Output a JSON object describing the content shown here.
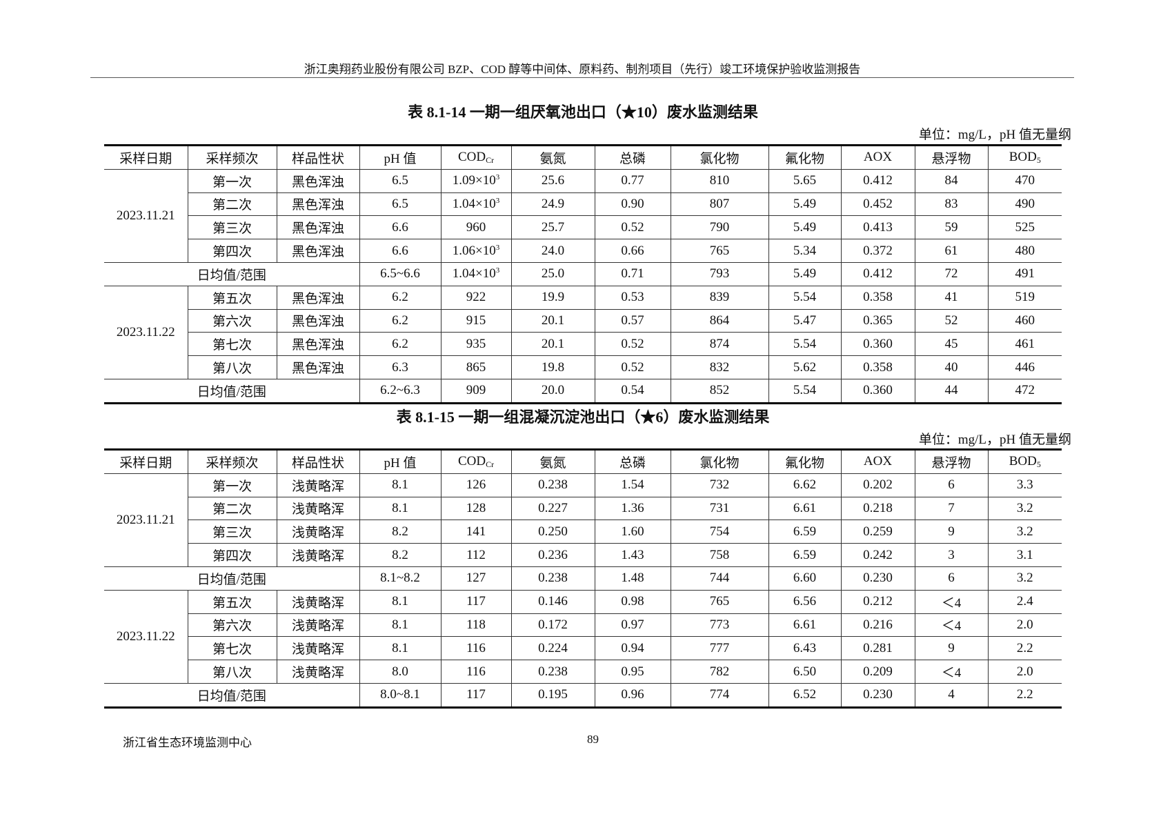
{
  "header": {
    "title": "浙江奥翔药业股份有限公司 BZP、COD 醇等中间体、原料药、制剂项目（先行）竣工环境保护验收监测报告"
  },
  "columns": [
    {
      "text": "采样日期"
    },
    {
      "text": "采样频次"
    },
    {
      "text": "样品性状"
    },
    {
      "text": "pH 值"
    },
    {
      "text": "COD",
      "sub": "Cr"
    },
    {
      "text": "氨氮"
    },
    {
      "text": "总磷"
    },
    {
      "text": "氯化物"
    },
    {
      "text": "氟化物"
    },
    {
      "text": "AOX"
    },
    {
      "text": "悬浮物"
    },
    {
      "text": "BOD",
      "sub": "5"
    }
  ],
  "tables": [
    {
      "title": "表 8.1-14  一期一组厌氧池出口（★10）废水监测结果",
      "unit": "单位：mg/L，pH 值无量纲",
      "groups": [
        {
          "date": "2023.11.21",
          "rows": [
            [
              "第一次",
              "黑色浑浊",
              "6.5",
              "1.09×10^3",
              "25.6",
              "0.77",
              "810",
              "5.65",
              "0.412",
              "84",
              "470"
            ],
            [
              "第二次",
              "黑色浑浊",
              "6.5",
              "1.04×10^3",
              "24.9",
              "0.90",
              "807",
              "5.49",
              "0.452",
              "83",
              "490"
            ],
            [
              "第三次",
              "黑色浑浊",
              "6.6",
              "960",
              "25.7",
              "0.52",
              "790",
              "5.49",
              "0.413",
              "59",
              "525"
            ],
            [
              "第四次",
              "黑色浑浊",
              "6.6",
              "1.06×10^3",
              "24.0",
              "0.66",
              "765",
              "5.34",
              "0.372",
              "61",
              "480"
            ]
          ],
          "summary": [
            "日均值/范围",
            "6.5~6.6",
            "1.04×10^3",
            "25.0",
            "0.71",
            "793",
            "5.49",
            "0.412",
            "72",
            "491"
          ]
        },
        {
          "date": "2023.11.22",
          "rows": [
            [
              "第五次",
              "黑色浑浊",
              "6.2",
              "922",
              "19.9",
              "0.53",
              "839",
              "5.54",
              "0.358",
              "41",
              "519"
            ],
            [
              "第六次",
              "黑色浑浊",
              "6.2",
              "915",
              "20.1",
              "0.57",
              "864",
              "5.47",
              "0.365",
              "52",
              "460"
            ],
            [
              "第七次",
              "黑色浑浊",
              "6.2",
              "935",
              "20.1",
              "0.52",
              "874",
              "5.54",
              "0.360",
              "45",
              "461"
            ],
            [
              "第八次",
              "黑色浑浊",
              "6.3",
              "865",
              "19.8",
              "0.52",
              "832",
              "5.62",
              "0.358",
              "40",
              "446"
            ]
          ],
          "summary": [
            "日均值/范围",
            "6.2~6.3",
            "909",
            "20.0",
            "0.54",
            "852",
            "5.54",
            "0.360",
            "44",
            "472"
          ]
        }
      ]
    },
    {
      "title": "表 8.1-15  一期一组混凝沉淀池出口（★6）废水监测结果",
      "unit": "单位：mg/L，pH 值无量纲",
      "groups": [
        {
          "date": "2023.11.21",
          "rows": [
            [
              "第一次",
              "浅黄略浑",
              "8.1",
              "126",
              "0.238",
              "1.54",
              "732",
              "6.62",
              "0.202",
              "6",
              "3.3"
            ],
            [
              "第二次",
              "浅黄略浑",
              "8.1",
              "128",
              "0.227",
              "1.36",
              "731",
              "6.61",
              "0.218",
              "7",
              "3.2"
            ],
            [
              "第三次",
              "浅黄略浑",
              "8.2",
              "141",
              "0.250",
              "1.60",
              "754",
              "6.59",
              "0.259",
              "9",
              "3.2"
            ],
            [
              "第四次",
              "浅黄略浑",
              "8.2",
              "112",
              "0.236",
              "1.43",
              "758",
              "6.59",
              "0.242",
              "3",
              "3.1"
            ]
          ],
          "summary": [
            "日均值/范围",
            "8.1~8.2",
            "127",
            "0.238",
            "1.48",
            "744",
            "6.60",
            "0.230",
            "6",
            "3.2"
          ]
        },
        {
          "date": "2023.11.22",
          "rows": [
            [
              "第五次",
              "浅黄略浑",
              "8.1",
              "117",
              "0.146",
              "0.98",
              "765",
              "6.56",
              "0.212",
              "＜4",
              "2.4"
            ],
            [
              "第六次",
              "浅黄略浑",
              "8.1",
              "118",
              "0.172",
              "0.97",
              "773",
              "6.61",
              "0.216",
              "＜4",
              "2.0"
            ],
            [
              "第七次",
              "浅黄略浑",
              "8.1",
              "116",
              "0.224",
              "0.94",
              "777",
              "6.43",
              "0.281",
              "9",
              "2.2"
            ],
            [
              "第八次",
              "浅黄略浑",
              "8.0",
              "116",
              "0.238",
              "0.95",
              "782",
              "6.50",
              "0.209",
              "＜4",
              "2.0"
            ]
          ],
          "summary": [
            "日均值/范围",
            "8.0~8.1",
            "117",
            "0.195",
            "0.96",
            "774",
            "6.52",
            "0.230",
            "4",
            "2.2"
          ]
        }
      ]
    }
  ],
  "footer": {
    "organization": "浙江省生态环境监测中心",
    "page": "89"
  }
}
